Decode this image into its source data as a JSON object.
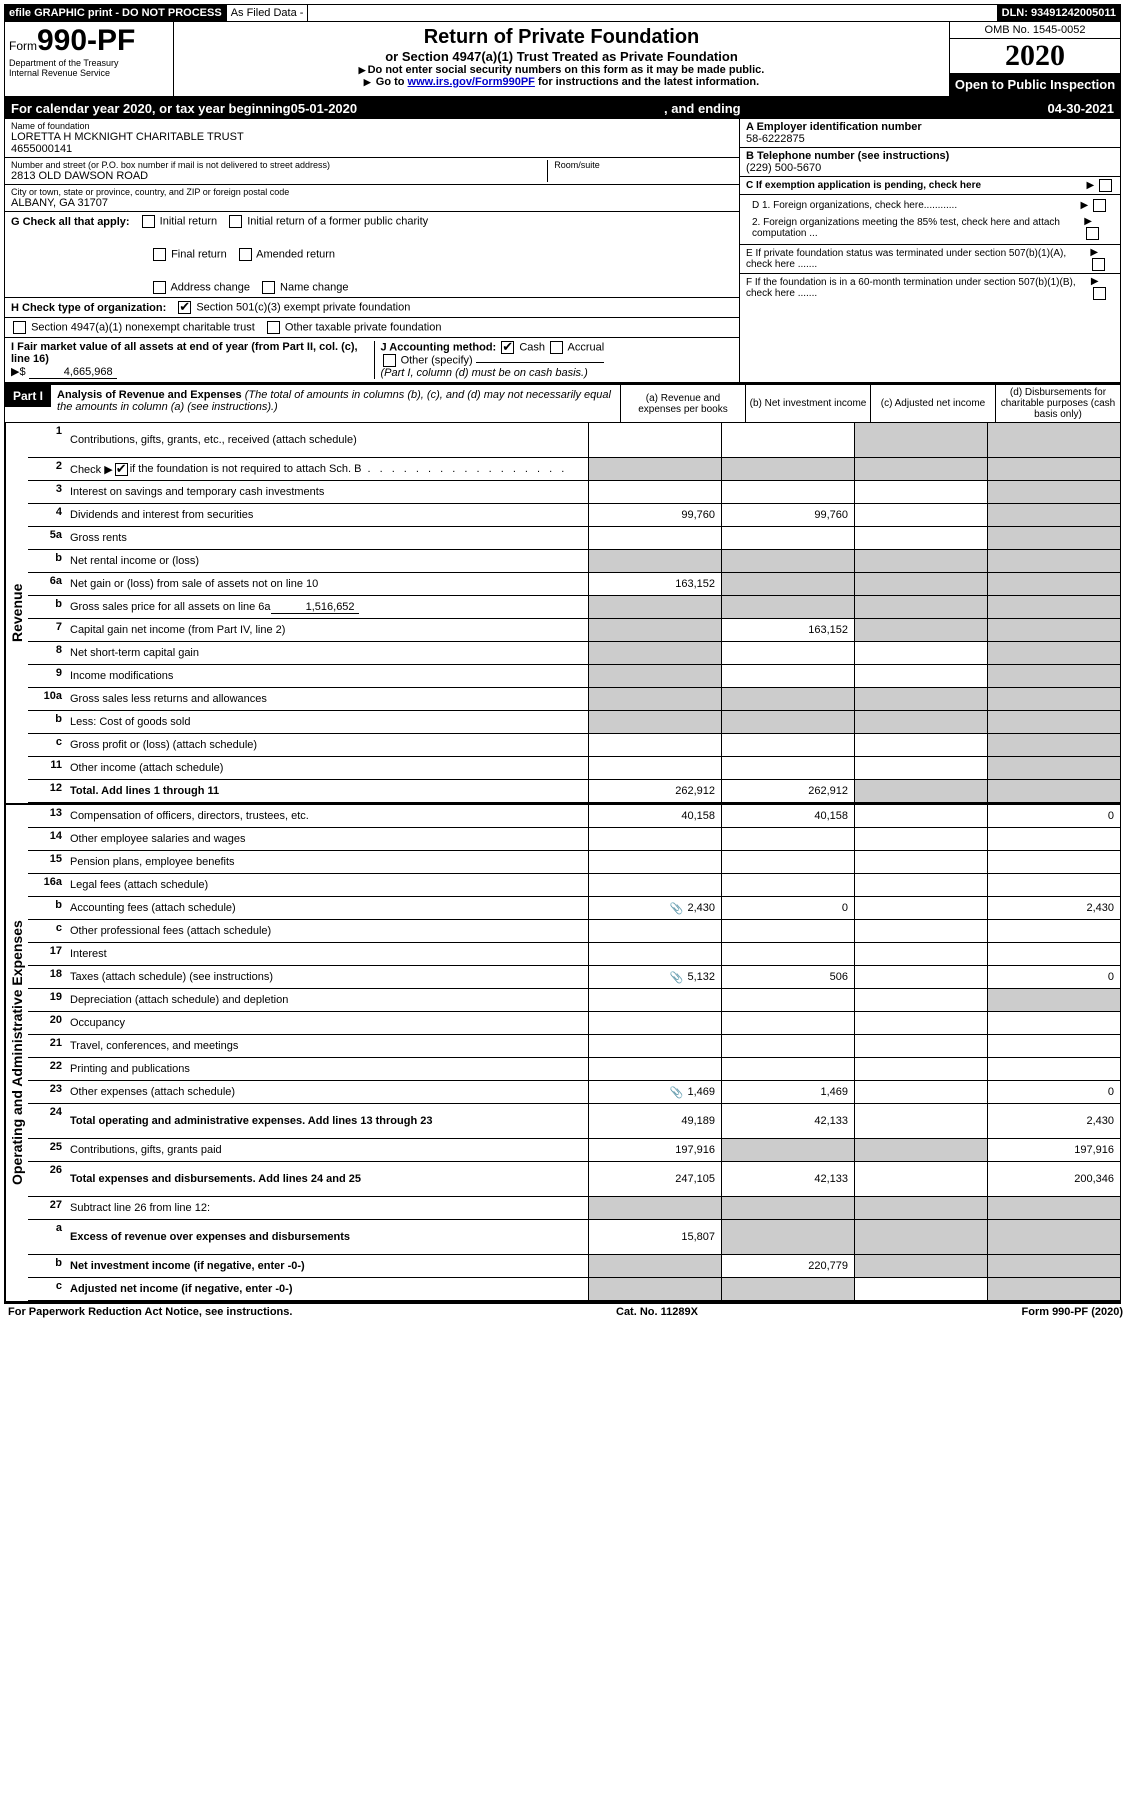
{
  "topBar": {
    "efile": "efile GRAPHIC print - DO NOT PROCESS",
    "asFiled": "As Filed Data -",
    "dln": "DLN: 93491242005011"
  },
  "header": {
    "formPrefix": "Form",
    "formNumber": "990-PF",
    "dept1": "Department of the Treasury",
    "dept2": "Internal Revenue Service",
    "titleMain": "Return of Private Foundation",
    "titleSub": "or Section 4947(a)(1) Trust Treated as Private Foundation",
    "warn1": "Do not enter social security numbers on this form as it may be made public.",
    "warn2Prefix": "Go to ",
    "warn2Link": "www.irs.gov/Form990PF",
    "warn2Suffix": " for instructions and the latest information.",
    "omb": "OMB No. 1545-0052",
    "year": "2020",
    "openPublic": "Open to Public Inspection"
  },
  "calYear": {
    "prefix": "For calendar year 2020, or tax year beginning ",
    "begin": "05-01-2020",
    "mid": ", and ending ",
    "end": "04-30-2021"
  },
  "entity": {
    "nameLabel": "Name of foundation",
    "name": "LORETTA H MCKNIGHT CHARITABLE TRUST",
    "nameNum": "4655000141",
    "addressLabel": "Number and street (or P.O. box number if mail is not delivered to street address)",
    "roomLabel": "Room/suite",
    "address": "2813 OLD DAWSON ROAD",
    "cityLabel": "City or town, state or province, country, and ZIP or foreign postal code",
    "city": "ALBANY, GA  31707",
    "einLabel": "A Employer identification number",
    "ein": "58-6222875",
    "phoneLabel": "B Telephone number (see instructions)",
    "phone": "(229) 500-5670",
    "cLabel": "C If exemption application is pending, check here",
    "d1": "D 1. Foreign organizations, check here............",
    "d2": "2. Foreign organizations meeting the 85% test, check here and attach computation ...",
    "eLabel": "E  If private foundation status was terminated under section 507(b)(1)(A), check here .......",
    "fLabel": "F  If the foundation is in a 60-month termination under section 507(b)(1)(B), check here ......."
  },
  "sectionG": {
    "label": "G Check all that apply:",
    "opts": [
      "Initial return",
      "Initial return of a former public charity",
      "Final return",
      "Amended return",
      "Address change",
      "Name change"
    ]
  },
  "sectionH": {
    "label": "H Check type of organization:",
    "opt1": "Section 501(c)(3) exempt private foundation",
    "opt2": "Section 4947(a)(1) nonexempt charitable trust",
    "opt3": "Other taxable private foundation"
  },
  "sectionI": {
    "label": "I Fair market value of all assets at end of year (from Part II, col. (c), line 16)",
    "valuePrefix": "▶$ ",
    "value": "4,665,968",
    "jLabel": "J Accounting method:",
    "jCash": "Cash",
    "jAccrual": "Accrual",
    "jOther": "Other (specify)",
    "jNote": "(Part I, column (d) must be on cash basis.)"
  },
  "part1": {
    "label": "Part I",
    "title": "Analysis of Revenue and Expenses",
    "note": " (The total of amounts in columns (b), (c), and (d) may not necessarily equal the amounts in column (a) (see instructions).)",
    "colA": "(a)  Revenue and expenses per books",
    "colB": "(b)  Net investment income",
    "colC": "(c)  Adjusted net income",
    "colD": "(d)  Disbursements for charitable purposes (cash basis only)"
  },
  "revenueLabel": "Revenue",
  "expensesLabel": "Operating and Administrative Expenses",
  "rows": {
    "r1": {
      "n": "1",
      "d": "Contributions, gifts, grants, etc., received (attach schedule)"
    },
    "r2": {
      "n": "2",
      "d": "Check ▶",
      "d2": " if the foundation is not required to attach Sch. B"
    },
    "r3": {
      "n": "3",
      "d": "Interest on savings and temporary cash investments"
    },
    "r4": {
      "n": "4",
      "d": "Dividends and interest from securities",
      "a": "99,760",
      "b": "99,760"
    },
    "r5a": {
      "n": "5a",
      "d": "Gross rents"
    },
    "r5b": {
      "n": "b",
      "d": "Net rental income or (loss)"
    },
    "r6a": {
      "n": "6a",
      "d": "Net gain or (loss) from sale of assets not on line 10",
      "a": "163,152"
    },
    "r6b": {
      "n": "b",
      "d": "Gross sales price for all assets on line 6a",
      "inline": "1,516,652"
    },
    "r7": {
      "n": "7",
      "d": "Capital gain net income (from Part IV, line 2)",
      "b": "163,152"
    },
    "r8": {
      "n": "8",
      "d": "Net short-term capital gain"
    },
    "r9": {
      "n": "9",
      "d": "Income modifications"
    },
    "r10a": {
      "n": "10a",
      "d": "Gross sales less returns and allowances"
    },
    "r10b": {
      "n": "b",
      "d": "Less: Cost of goods sold"
    },
    "r10c": {
      "n": "c",
      "d": "Gross profit or (loss) (attach schedule)"
    },
    "r11": {
      "n": "11",
      "d": "Other income (attach schedule)"
    },
    "r12": {
      "n": "12",
      "d": "Total. Add lines 1 through 11",
      "a": "262,912",
      "b": "262,912",
      "bold": true
    },
    "r13": {
      "n": "13",
      "d": "Compensation of officers, directors, trustees, etc.",
      "a": "40,158",
      "b": "40,158",
      "dd": "0"
    },
    "r14": {
      "n": "14",
      "d": "Other employee salaries and wages"
    },
    "r15": {
      "n": "15",
      "d": "Pension plans, employee benefits"
    },
    "r16a": {
      "n": "16a",
      "d": "Legal fees (attach schedule)"
    },
    "r16b": {
      "n": "b",
      "d": "Accounting fees (attach schedule)",
      "a": "2,430",
      "b": "0",
      "dd": "2,430",
      "icon": true
    },
    "r16c": {
      "n": "c",
      "d": "Other professional fees (attach schedule)"
    },
    "r17": {
      "n": "17",
      "d": "Interest"
    },
    "r18": {
      "n": "18",
      "d": "Taxes (attach schedule) (see instructions)",
      "a": "5,132",
      "b": "506",
      "dd": "0",
      "icon": true
    },
    "r19": {
      "n": "19",
      "d": "Depreciation (attach schedule) and depletion"
    },
    "r20": {
      "n": "20",
      "d": "Occupancy"
    },
    "r21": {
      "n": "21",
      "d": "Travel, conferences, and meetings"
    },
    "r22": {
      "n": "22",
      "d": "Printing and publications"
    },
    "r23": {
      "n": "23",
      "d": "Other expenses (attach schedule)",
      "a": "1,469",
      "b": "1,469",
      "dd": "0",
      "icon": true
    },
    "r24": {
      "n": "24",
      "d": "Total operating and administrative expenses. Add lines 13 through 23",
      "a": "49,189",
      "b": "42,133",
      "dd": "2,430",
      "bold": true
    },
    "r25": {
      "n": "25",
      "d": "Contributions, gifts, grants paid",
      "a": "197,916",
      "dd": "197,916"
    },
    "r26": {
      "n": "26",
      "d": "Total expenses and disbursements. Add lines 24 and 25",
      "a": "247,105",
      "b": "42,133",
      "dd": "200,346",
      "bold": true
    },
    "r27": {
      "n": "27",
      "d": "Subtract line 26 from line 12:"
    },
    "r27a": {
      "n": "a",
      "d": "Excess of revenue over expenses and disbursements",
      "a": "15,807",
      "bold": true
    },
    "r27b": {
      "n": "b",
      "d": "Net investment income (if negative, enter -0-)",
      "b": "220,779",
      "bold": true
    },
    "r27c": {
      "n": "c",
      "d": "Adjusted net income (if negative, enter -0-)",
      "bold": true
    }
  },
  "footer": {
    "left": "For Paperwork Reduction Act Notice, see instructions.",
    "mid": "Cat. No. 11289X",
    "right": "Form 990-PF (2020)"
  },
  "greyCells": {
    "revenue": {
      "r1": [
        "c",
        "d"
      ],
      "r2": [
        "a",
        "b",
        "c",
        "d"
      ],
      "r3": [
        "d"
      ],
      "r4": [
        "d"
      ],
      "r5a": [
        "d"
      ],
      "r5b": [
        "a",
        "b",
        "c",
        "d"
      ],
      "r6a": [
        "b",
        "c",
        "d"
      ],
      "r6b": [
        "a",
        "b",
        "c",
        "d"
      ],
      "r7": [
        "a",
        "c",
        "d"
      ],
      "r8": [
        "a",
        "d"
      ],
      "r9": [
        "a",
        "d"
      ],
      "r10a": [
        "a",
        "b",
        "c",
        "d"
      ],
      "r10b": [
        "a",
        "b",
        "c",
        "d"
      ],
      "r10c": [
        "d"
      ],
      "r11": [
        "d"
      ],
      "r12": [
        "c",
        "d"
      ]
    },
    "expenses": {
      "r19": [
        "d"
      ],
      "r25": [
        "b",
        "c"
      ],
      "r27": [
        "a",
        "b",
        "c",
        "d"
      ],
      "r27a": [
        "b",
        "c",
        "d"
      ],
      "r27b": [
        "a",
        "c",
        "d"
      ],
      "r27c": [
        "a",
        "b",
        "d"
      ]
    }
  }
}
